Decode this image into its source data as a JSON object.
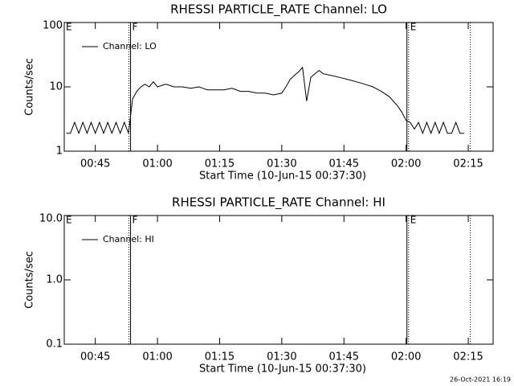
{
  "chart_data": [
    {
      "type": "line",
      "title": "RHESSI PARTICLE_RATE Channel: LO",
      "xlabel": "Start Time (10-Jun-15 00:37:30)",
      "ylabel": "Counts/sec",
      "log_y": true,
      "ylim": [
        1,
        100
      ],
      "yticks": [
        1,
        10,
        100
      ],
      "xlim": [
        "00:37:30",
        "02:21:00"
      ],
      "xticks": [
        "00:45",
        "01:00",
        "01:15",
        "01:30",
        "01:45",
        "02:00",
        "02:15"
      ],
      "legend": "upper left",
      "x": [
        "00:38",
        "00:39",
        "00:40",
        "00:41",
        "00:42",
        "00:43",
        "00:44",
        "00:45",
        "00:46",
        "00:47",
        "00:48",
        "00:49",
        "00:50",
        "00:51",
        "00:52",
        "00:53",
        "00:54",
        "00:55",
        "00:56",
        "00:57",
        "00:58",
        "00:59",
        "01:00",
        "01:02",
        "01:04",
        "01:06",
        "01:08",
        "01:10",
        "01:12",
        "01:14",
        "01:16",
        "01:18",
        "01:20",
        "01:22",
        "01:24",
        "01:26",
        "01:28",
        "01:30",
        "01:31",
        "01:32",
        "01:33",
        "01:34",
        "01:35",
        "01:36",
        "01:37",
        "01:38",
        "01:39",
        "01:40",
        "01:42",
        "01:44",
        "01:46",
        "01:48",
        "01:50",
        "01:52",
        "01:54",
        "01:56",
        "01:58",
        "01:59",
        "02:00",
        "02:01",
        "02:02",
        "02:03",
        "02:04",
        "02:05",
        "02:06",
        "02:07",
        "02:08",
        "02:09",
        "02:10",
        "02:11",
        "02:12",
        "02:13",
        "02:14"
      ],
      "series": [
        {
          "name": "Channel: LO",
          "color": "#000000",
          "values": [
            1.9,
            1.9,
            2.8,
            1.9,
            2.8,
            1.9,
            2.8,
            1.9,
            2.8,
            1.9,
            2.8,
            1.9,
            2.8,
            1.9,
            2.8,
            1.9,
            6.5,
            8.5,
            10,
            11,
            10,
            12,
            10,
            11,
            10,
            10,
            9.5,
            10,
            9,
            9,
            9,
            9.5,
            8.5,
            8.5,
            8,
            8,
            7.5,
            8,
            10,
            13,
            15,
            17,
            20,
            6,
            14,
            16,
            18,
            16,
            15,
            14,
            13,
            12,
            11,
            10,
            8.5,
            7,
            5,
            4,
            3,
            2.8,
            2.2,
            2.8,
            1.9,
            2.8,
            1.9,
            2.8,
            1.9,
            2.8,
            1.9,
            1.9,
            2.8,
            1.9,
            1.9
          ]
        }
      ],
      "vlines": [
        {
          "x": "00:53:06",
          "style": "dotted"
        },
        {
          "x": "00:53:30",
          "style": "solid"
        },
        {
          "x": "02:00:12",
          "style": "solid"
        },
        {
          "x": "02:00:36",
          "style": "dotted"
        },
        {
          "x": "02:15:30",
          "style": "dotted"
        }
      ],
      "annotations": [
        {
          "text": "E",
          "x": "00:37:30"
        },
        {
          "text": "F",
          "x": "00:53:30"
        },
        {
          "text": "E",
          "x": "02:00:36"
        }
      ]
    },
    {
      "type": "line",
      "title": "RHESSI PARTICLE_RATE Channel: HI",
      "xlabel": "Start Time (10-Jun-15 00:37:30)",
      "ylabel": "Counts/sec",
      "log_y": true,
      "ylim": [
        0.1,
        10
      ],
      "yticks": [
        0.1,
        {
          "value": 1,
          "label": "1.0"
        },
        {
          "value": 10,
          "label": "10.0"
        }
      ],
      "xlim": [
        "00:37:30",
        "02:21:00"
      ],
      "xticks": [
        "00:45",
        "01:00",
        "01:15",
        "01:30",
        "01:45",
        "02:00",
        "02:15"
      ],
      "legend": "upper left",
      "x": [],
      "series": [
        {
          "name": "Channel: HI",
          "color": "#000000",
          "values": []
        }
      ],
      "vlines": [
        {
          "x": "00:53:06",
          "style": "dotted"
        },
        {
          "x": "00:53:30",
          "style": "solid"
        },
        {
          "x": "02:00:12",
          "style": "solid"
        },
        {
          "x": "02:00:36",
          "style": "dotted"
        },
        {
          "x": "02:15:30",
          "style": "dotted"
        }
      ],
      "annotations": [
        {
          "text": "E",
          "x": "00:37:30"
        },
        {
          "text": "F",
          "x": "00:53:30"
        },
        {
          "text": "E",
          "x": "02:00:36"
        }
      ]
    }
  ],
  "timestamp": "26-Oct-2021 16:19"
}
